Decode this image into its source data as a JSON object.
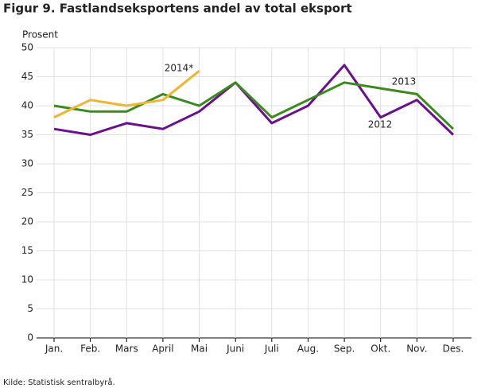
{
  "chart_data": {
    "type": "line",
    "title": "Figur 9.  Fastlandseksportens andel av total eksport",
    "y_label": "Prosent",
    "source": "Kilde: Statistisk sentralbyrå.",
    "categories": [
      "Jan.",
      "Feb.",
      "Mars",
      "April",
      "Mai",
      "Juni",
      "Juli",
      "Aug.",
      "Sep.",
      "Okt.",
      "Nov.",
      "Des."
    ],
    "series": [
      {
        "name": "2012",
        "color": "#6a0f8e",
        "values": [
          36,
          35,
          37,
          36,
          39,
          44,
          37,
          40,
          47,
          38,
          41,
          35
        ]
      },
      {
        "name": "2013",
        "color": "#3b8b1c",
        "values": [
          40,
          39,
          39,
          42,
          40,
          44,
          38,
          41,
          44,
          43,
          42,
          36
        ]
      },
      {
        "name": "2014*",
        "color": "#efb531",
        "values": [
          38,
          41,
          40,
          41,
          46,
          null,
          null,
          null,
          null,
          null,
          null,
          null
        ]
      }
    ],
    "ylim": [
      0,
      50
    ],
    "yticks": [
      0,
      5,
      10,
      15,
      20,
      25,
      30,
      35,
      40,
      45,
      50
    ],
    "grid": true
  }
}
